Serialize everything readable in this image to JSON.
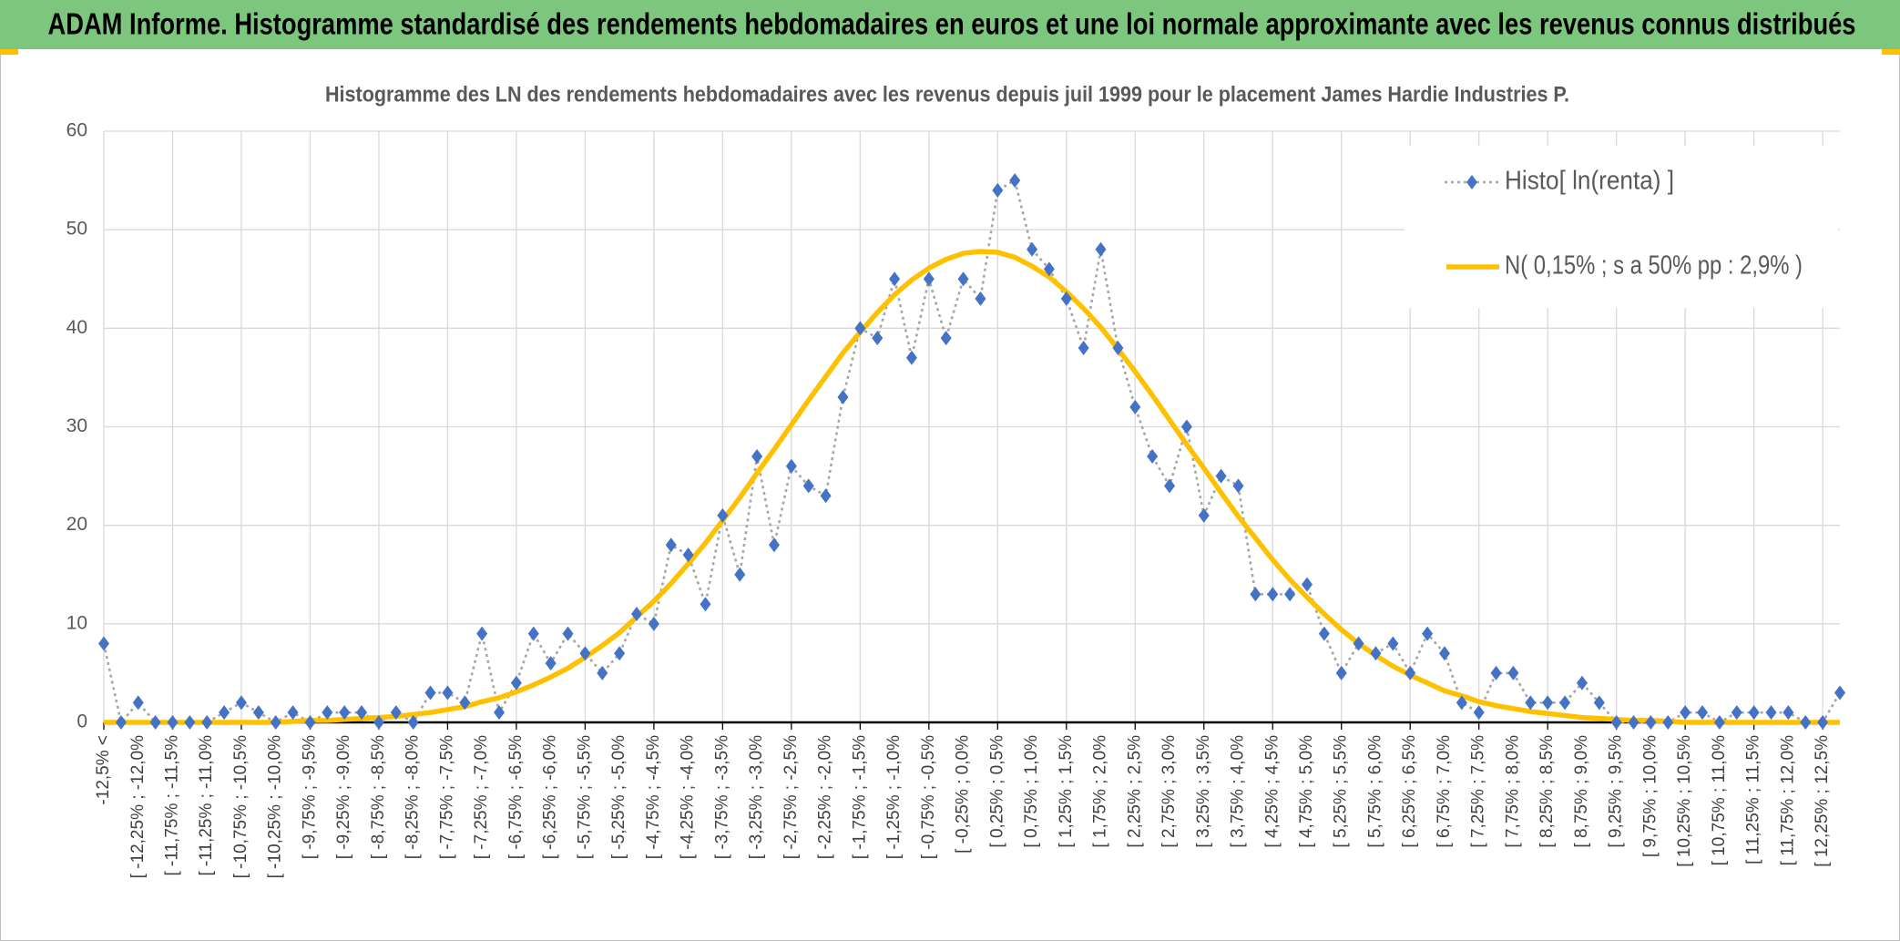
{
  "header": {
    "title": "ADAM Informe. Histogramme standardisé des rendements hebdomadaires en euros et une loi normale approximante avec les revenus connus distribués"
  },
  "chart_data": {
    "type": "line",
    "title": "Histogramme des LN des rendements hebdomadaires avec les revenus depuis juil 1999 pour le placement James Hardie Industries P.",
    "categories": [
      "-12,5% <",
      null,
      "[ -12,25% ; -12,0%",
      null,
      "[ -11,75% ; -11,5%",
      null,
      "[ -11,25% ; -11,0%",
      null,
      "[ -10,75% ; -10,5%",
      null,
      "[ -10,25% ; -10,0%",
      null,
      "[ -9,75% ; -9,5%",
      null,
      "[ -9,25% ; -9,0%",
      null,
      "[ -8,75% ; -8,5%",
      null,
      "[ -8,25% ; -8,0%",
      null,
      "[ -7,75% ; -7,5%",
      null,
      "[ -7,25% ; -7,0%",
      null,
      "[ -6,75% ; -6,5%",
      null,
      "[ -6,25% ; -6,0%",
      null,
      "[ -5,75% ; -5,5%",
      null,
      "[ -5,25% ; -5,0%",
      null,
      "[ -4,75% ; -4,5%",
      null,
      "[ -4,25% ; -4,0%",
      null,
      "[ -3,75% ; -3,5%",
      null,
      "[ -3,25% ; -3,0%",
      null,
      "[ -2,75% ; -2,5%",
      null,
      "[ -2,25% ; -2,0%",
      null,
      "[ -1,75% ; -1,5%",
      null,
      "[ -1,25% ; -1,0%",
      null,
      "[ -0,75% ; -0,5%",
      null,
      "[ -0,25% ; 0,0%",
      null,
      "[ 0,25% ; 0,5%",
      null,
      "[ 0,75% ; 1,0%",
      null,
      "[ 1,25% ; 1,5%",
      null,
      "[ 1,75% ; 2,0%",
      null,
      "[ 2,25% ; 2,5%",
      null,
      "[ 2,75% ; 3,0%",
      null,
      "[ 3,25% ; 3,5%",
      null,
      "[ 3,75% ; 4,0%",
      null,
      "[ 4,25% ; 4,5%",
      null,
      "[ 4,75% ; 5,0%",
      null,
      "[ 5,25% ; 5,5%",
      null,
      "[ 5,75% ; 6,0%",
      null,
      "[ 6,25% ; 6,5%",
      null,
      "[ 6,75% ; 7,0%",
      null,
      "[ 7,25% ; 7,5%",
      null,
      "[ 7,75% ; 8,0%",
      null,
      "[ 8,25% ; 8,5%",
      null,
      "[ 8,75% ; 9,0%",
      null,
      "[ 9,25% ; 9,5%",
      null,
      "[ 9,75% ; 10,0%",
      null,
      "[ 10,25% ; 10,5%",
      null,
      "[ 10,75% ; 11,0%",
      null,
      "[ 11,25% ; 11,5%",
      null,
      "[ 11,75% ; 12,0%",
      null,
      "[ 12,25% ; 12,5%",
      null
    ],
    "series": [
      {
        "name": "Histo[ ln(renta) ]",
        "color": "#4472c4",
        "line_color": "#a6a6a6",
        "values": [
          8,
          0,
          2,
          0,
          0,
          0,
          0,
          1,
          2,
          1,
          0,
          1,
          0,
          1,
          1,
          1,
          0,
          1,
          0,
          3,
          3,
          2,
          9,
          1,
          4,
          9,
          6,
          9,
          7,
          5,
          7,
          11,
          10,
          18,
          17,
          12,
          21,
          15,
          27,
          18,
          26,
          24,
          23,
          33,
          40,
          39,
          45,
          37,
          45,
          39,
          45,
          43,
          54,
          55,
          48,
          46,
          43,
          38,
          48,
          38,
          32,
          27,
          24,
          30,
          21,
          25,
          24,
          13,
          13,
          13,
          14,
          9,
          5,
          8,
          7,
          8,
          5,
          9,
          7,
          2,
          1,
          5,
          5,
          2,
          2,
          2,
          4,
          2,
          0,
          0,
          0,
          0,
          1,
          1,
          0,
          1,
          1,
          1,
          1,
          0,
          0,
          3
        ]
      },
      {
        "name": "N( 0,15% ; s a 50% pp : 2,9% )",
        "color": "#ffc000",
        "values": [
          0,
          0,
          0,
          0,
          0,
          0,
          0,
          0,
          0,
          0,
          0,
          0.1,
          0.2,
          0.2,
          0.3,
          0.4,
          0.5,
          0.6,
          0.8,
          1.0,
          1.3,
          1.6,
          2.1,
          2.5,
          3.1,
          3.8,
          4.6,
          5.5,
          6.6,
          7.8,
          9.1,
          10.7,
          12.3,
          14.1,
          16.1,
          18.2,
          20.5,
          22.8,
          25.3,
          27.7,
          30.2,
          32.7,
          35.1,
          37.5,
          39.6,
          41.6,
          43.4,
          44.9,
          46.1,
          47.0,
          47.6,
          47.8,
          47.7,
          47.2,
          46.3,
          45.2,
          43.7,
          42.0,
          40.1,
          37.9,
          35.6,
          33.2,
          30.7,
          28.2,
          25.8,
          23.3,
          20.9,
          18.7,
          16.5,
          14.5,
          12.7,
          11.0,
          9.4,
          8.0,
          6.8,
          5.7,
          4.8,
          4.0,
          3.2,
          2.7,
          2.1,
          1.7,
          1.4,
          1.1,
          0.9,
          0.7,
          0.5,
          0.4,
          0.3,
          0.2,
          0.2,
          0.1,
          0,
          0,
          0,
          0,
          0,
          0,
          0,
          0,
          0,
          0
        ]
      }
    ],
    "ylim": [
      0,
      60
    ],
    "yticks": [
      0,
      10,
      20,
      30,
      40,
      50,
      60
    ],
    "grid": true,
    "legend": "top-right"
  }
}
